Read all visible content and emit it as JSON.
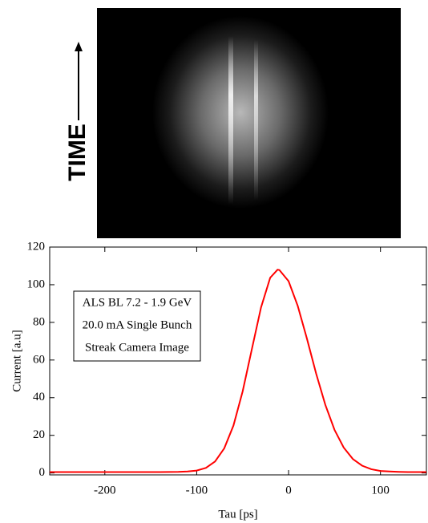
{
  "image": {
    "label": "TIME"
  },
  "chart_data": {
    "type": "line",
    "annotation": [
      "ALS BL 7.2 - 1.9 GeV",
      "20.0 mA Single Bunch",
      "Streak Camera Image"
    ],
    "x_label": "Tau [ps]",
    "y_label": "Current [a.u]",
    "x": [
      -260,
      -220,
      -180,
      -140,
      -120,
      -110,
      -100,
      -90,
      -80,
      -70,
      -60,
      -50,
      -40,
      -30,
      -20,
      -12,
      -10,
      0,
      10,
      20,
      30,
      40,
      50,
      60,
      70,
      80,
      90,
      100,
      110,
      120,
      130,
      140,
      150
    ],
    "values": [
      0.5,
      0.5,
      0.5,
      0.5,
      0.6,
      0.8,
      1.3,
      2.7,
      6.1,
      13.1,
      25.2,
      43.3,
      65.7,
      87.9,
      103.7,
      108,
      107.8,
      101.9,
      88.7,
      71.3,
      52.8,
      36.2,
      22.9,
      13.5,
      7.4,
      3.9,
      2.0,
      1.1,
      0.8,
      0.6,
      0.5,
      0.5,
      0.5
    ],
    "color": "#ff0000",
    "xlim": [
      -260,
      150
    ],
    "ylim": [
      -1,
      120
    ],
    "xticks": [
      -200,
      -100,
      0,
      100
    ],
    "yticks": [
      0,
      20,
      40,
      60,
      80,
      100,
      120
    ]
  }
}
